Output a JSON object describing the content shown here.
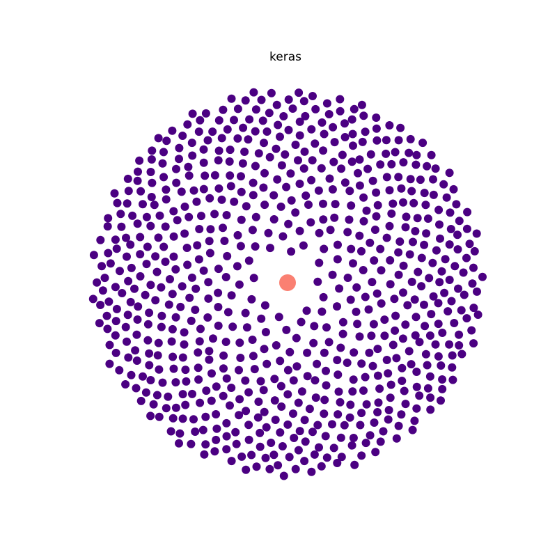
{
  "title": "keras",
  "center_node": {
    "label": "keras",
    "color": "#fa8072"
  },
  "node_color": "#4b0082"
}
